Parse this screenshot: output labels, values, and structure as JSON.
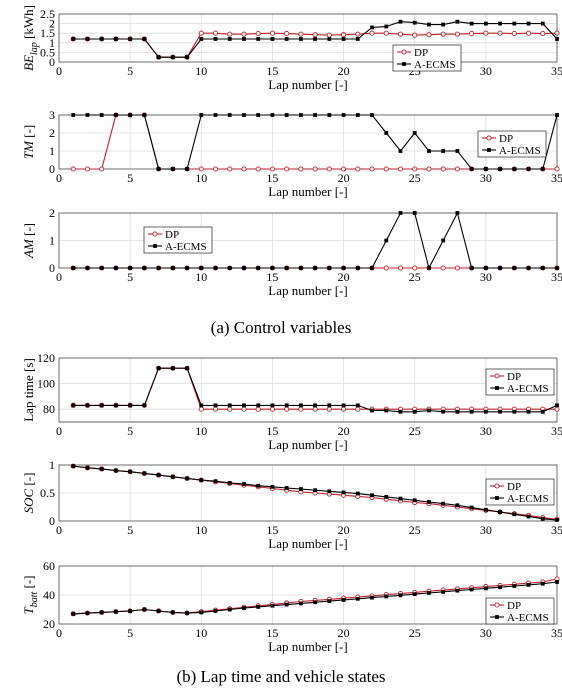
{
  "figure": {
    "caption_a": "(a) Control variables",
    "caption_b": "(b) Lap time and vehicle states"
  },
  "colors": {
    "dp": "#c0202a",
    "aecms": "#000000",
    "grid": "#dcdcdc"
  },
  "chart_data": [
    {
      "id": "be",
      "type": "line",
      "xlabel": "Lap number [-]",
      "ylabel_parts": [
        "BE",
        "lap",
        " [kWh]"
      ],
      "xlim": [
        0,
        35
      ],
      "ylim": [
        0,
        2.5
      ],
      "yticks": [
        "0",
        "0.5",
        "1",
        "1.5",
        "2",
        "2.5"
      ],
      "xticks": [
        "0",
        "5",
        "10",
        "15",
        "20",
        "25",
        "30",
        "35"
      ],
      "grid": true,
      "legend_position": "bottom-right",
      "x": [
        1,
        2,
        3,
        4,
        5,
        6,
        7,
        8,
        9,
        10,
        11,
        12,
        13,
        14,
        15,
        16,
        17,
        18,
        19,
        20,
        21,
        22,
        23,
        24,
        25,
        26,
        27,
        28,
        29,
        30,
        31,
        32,
        33,
        34,
        35
      ],
      "series": [
        {
          "name": "DP",
          "marker": "circle",
          "values": [
            1.2,
            1.2,
            1.2,
            1.2,
            1.2,
            1.2,
            0.25,
            0.25,
            0.25,
            1.5,
            1.5,
            1.45,
            1.45,
            1.48,
            1.5,
            1.48,
            1.45,
            1.42,
            1.4,
            1.42,
            1.45,
            1.5,
            1.5,
            1.45,
            1.4,
            1.42,
            1.45,
            1.45,
            1.48,
            1.5,
            1.5,
            1.48,
            1.5,
            1.48,
            1.5
          ]
        },
        {
          "name": "A-ECMS",
          "marker": "square",
          "values": [
            1.2,
            1.2,
            1.2,
            1.2,
            1.2,
            1.2,
            0.25,
            0.25,
            0.25,
            1.2,
            1.2,
            1.2,
            1.2,
            1.2,
            1.2,
            1.2,
            1.2,
            1.2,
            1.2,
            1.2,
            1.2,
            1.8,
            1.85,
            2.1,
            2.05,
            1.95,
            1.95,
            2.1,
            2.0,
            2.0,
            2.0,
            2.0,
            2.0,
            2.0,
            1.2
          ]
        }
      ]
    },
    {
      "id": "tm",
      "type": "line",
      "xlabel": "Lap number [-]",
      "ylabel_parts": [
        "TM",
        "",
        " [-]"
      ],
      "xlim": [
        0,
        35
      ],
      "ylim": [
        0,
        3
      ],
      "yticks": [
        "0",
        "1",
        "2",
        "3"
      ],
      "xticks": [
        "0",
        "5",
        "10",
        "15",
        "20",
        "25",
        "30",
        "35"
      ],
      "grid": true,
      "legend_position": "top-right",
      "x": [
        1,
        2,
        3,
        4,
        5,
        6,
        7,
        8,
        9,
        10,
        11,
        12,
        13,
        14,
        15,
        16,
        17,
        18,
        19,
        20,
        21,
        22,
        23,
        24,
        25,
        26,
        27,
        28,
        29,
        30,
        31,
        32,
        33,
        34,
        35
      ],
      "series": [
        {
          "name": "DP",
          "marker": "circle",
          "values": [
            0,
            0,
            0,
            3,
            3,
            3,
            0,
            0,
            0,
            0,
            0,
            0,
            0,
            0,
            0,
            0,
            0,
            0,
            0,
            0,
            0,
            0,
            0,
            0,
            0,
            0,
            0,
            0,
            0,
            0,
            0,
            0,
            0,
            0,
            0
          ]
        },
        {
          "name": "A-ECMS",
          "marker": "square",
          "values": [
            3,
            3,
            3,
            3,
            3,
            3,
            0,
            0,
            0,
            3,
            3,
            3,
            3,
            3,
            3,
            3,
            3,
            3,
            3,
            3,
            3,
            3,
            2,
            1,
            2,
            1,
            1,
            1,
            0,
            0,
            0,
            0,
            0,
            0,
            3
          ]
        }
      ]
    },
    {
      "id": "am",
      "type": "line",
      "xlabel": "Lap number [-]",
      "ylabel_parts": [
        "AM",
        "",
        " [-]"
      ],
      "xlim": [
        0,
        35
      ],
      "ylim": [
        0,
        2
      ],
      "yticks": [
        "0",
        "1",
        "2"
      ],
      "xticks": [
        "0",
        "5",
        "10",
        "15",
        "20",
        "25",
        "30",
        "35"
      ],
      "grid": true,
      "legend_position": "middle-left",
      "x": [
        1,
        2,
        3,
        4,
        5,
        6,
        7,
        8,
        9,
        10,
        11,
        12,
        13,
        14,
        15,
        16,
        17,
        18,
        19,
        20,
        21,
        22,
        23,
        24,
        25,
        26,
        27,
        28,
        29,
        30,
        31,
        32,
        33,
        34,
        35
      ],
      "series": [
        {
          "name": "DP",
          "marker": "circle",
          "values": [
            0,
            0,
            0,
            0,
            0,
            0,
            0,
            0,
            0,
            0,
            0,
            0,
            0,
            0,
            0,
            0,
            0,
            0,
            0,
            0,
            0,
            0,
            0,
            0,
            0,
            0,
            0,
            0,
            0,
            0,
            0,
            0,
            0,
            0,
            0
          ]
        },
        {
          "name": "A-ECMS",
          "marker": "square",
          "values": [
            0,
            0,
            0,
            0,
            0,
            0,
            0,
            0,
            0,
            0,
            0,
            0,
            0,
            0,
            0,
            0,
            0,
            0,
            0,
            0,
            0,
            0,
            1,
            2,
            2,
            0,
            1,
            2,
            0,
            0,
            0,
            0,
            0,
            0,
            0
          ]
        }
      ]
    },
    {
      "id": "laptime",
      "type": "line",
      "xlabel": "Lap number [-]",
      "ylabel_parts": [
        "Lap time [s]",
        "",
        ""
      ],
      "ylabel_italic": false,
      "xlim": [
        0,
        35
      ],
      "ylim": [
        70,
        120
      ],
      "yticks": [
        "80",
        "100",
        "120"
      ],
      "yticks_values": [
        80,
        100,
        120
      ],
      "xticks": [
        "0",
        "5",
        "10",
        "15",
        "20",
        "25",
        "30",
        "35"
      ],
      "grid": true,
      "legend_position": "top-right",
      "x": [
        1,
        2,
        3,
        4,
        5,
        6,
        7,
        8,
        9,
        10,
        11,
        12,
        13,
        14,
        15,
        16,
        17,
        18,
        19,
        20,
        21,
        22,
        23,
        24,
        25,
        26,
        27,
        28,
        29,
        30,
        31,
        32,
        33,
        34,
        35
      ],
      "series": [
        {
          "name": "DP",
          "marker": "circle",
          "values": [
            83,
            83,
            83,
            83,
            83,
            83,
            112,
            112,
            112,
            80,
            80,
            80,
            80,
            80,
            80,
            80,
            80,
            80,
            80,
            80,
            80,
            80,
            80,
            80,
            80,
            80,
            80,
            80,
            80,
            80,
            80,
            80,
            80,
            80,
            80
          ]
        },
        {
          "name": "A-ECMS",
          "marker": "square",
          "values": [
            83,
            83,
            83,
            83,
            83,
            83,
            112,
            112,
            112,
            83,
            83,
            83,
            83,
            83,
            83,
            83,
            83,
            83,
            83,
            83,
            83,
            79,
            79,
            78,
            78,
            79,
            78,
            78,
            78,
            78,
            78,
            78,
            78,
            78,
            83
          ]
        }
      ]
    },
    {
      "id": "soc",
      "type": "line",
      "xlabel": "Lap number [-]",
      "ylabel_parts": [
        "SOC",
        "",
        " [-]"
      ],
      "xlim": [
        0,
        35
      ],
      "ylim": [
        0,
        1
      ],
      "yticks": [
        "0",
        "0.5",
        "1"
      ],
      "xticks": [
        "0",
        "5",
        "10",
        "15",
        "20",
        "25",
        "30",
        "35"
      ],
      "grid": true,
      "legend_position": "middle-right",
      "x": [
        1,
        2,
        3,
        4,
        5,
        6,
        7,
        8,
        9,
        10,
        11,
        12,
        13,
        14,
        15,
        16,
        17,
        18,
        19,
        20,
        21,
        22,
        23,
        24,
        25,
        26,
        27,
        28,
        29,
        30,
        31,
        32,
        33,
        34,
        35
      ],
      "series": [
        {
          "name": "DP",
          "marker": "circle",
          "values": [
            0.98,
            0.95,
            0.93,
            0.9,
            0.88,
            0.85,
            0.82,
            0.79,
            0.76,
            0.73,
            0.7,
            0.67,
            0.64,
            0.61,
            0.58,
            0.55,
            0.52,
            0.5,
            0.48,
            0.46,
            0.44,
            0.42,
            0.39,
            0.36,
            0.33,
            0.31,
            0.28,
            0.25,
            0.22,
            0.19,
            0.16,
            0.13,
            0.1,
            0.06,
            0.03
          ]
        },
        {
          "name": "A-ECMS",
          "marker": "square",
          "values": [
            0.98,
            0.95,
            0.93,
            0.9,
            0.88,
            0.85,
            0.82,
            0.79,
            0.76,
            0.73,
            0.71,
            0.68,
            0.66,
            0.63,
            0.61,
            0.59,
            0.57,
            0.55,
            0.53,
            0.51,
            0.49,
            0.46,
            0.43,
            0.4,
            0.37,
            0.34,
            0.31,
            0.28,
            0.24,
            0.2,
            0.16,
            0.12,
            0.08,
            0.04,
            0.02
          ]
        }
      ]
    },
    {
      "id": "tbatt",
      "type": "line",
      "xlabel": "Lap number [-]",
      "ylabel_parts": [
        "T",
        "batt",
        " [-]"
      ],
      "xlim": [
        0,
        35
      ],
      "ylim": [
        20,
        60
      ],
      "yticks": [
        "20",
        "40",
        "60"
      ],
      "yticks_values": [
        20,
        40,
        60
      ],
      "xticks": [
        "0",
        "5",
        "10",
        "15",
        "20",
        "25",
        "30",
        "35"
      ],
      "grid": true,
      "legend_position": "bottom-right",
      "x": [
        1,
        2,
        3,
        4,
        5,
        6,
        7,
        8,
        9,
        10,
        11,
        12,
        13,
        14,
        15,
        16,
        17,
        18,
        19,
        20,
        21,
        22,
        23,
        24,
        25,
        26,
        27,
        28,
        29,
        30,
        31,
        32,
        33,
        34,
        35
      ],
      "series": [
        {
          "name": "DP",
          "marker": "circle",
          "values": [
            27,
            27.5,
            28,
            28.5,
            29,
            30,
            29,
            28,
            27.5,
            28.5,
            29.5,
            30.5,
            31.5,
            32.5,
            33.5,
            34.5,
            35.5,
            36.3,
            37,
            37.8,
            38.6,
            39.4,
            40.2,
            41,
            41.8,
            42.6,
            43.4,
            44.2,
            45,
            45.8,
            46.6,
            47.4,
            48.2,
            49,
            51
          ]
        },
        {
          "name": "A-ECMS",
          "marker": "square",
          "values": [
            27,
            27.5,
            28,
            28.5,
            29,
            30,
            29,
            28,
            27.5,
            28,
            29,
            30,
            31,
            31.8,
            32.6,
            33.4,
            34.2,
            35,
            35.8,
            36.6,
            37.4,
            38.2,
            39,
            39.8,
            40.6,
            41.4,
            42.2,
            43,
            43.8,
            44.6,
            45.4,
            46.2,
            47,
            47.8,
            49
          ]
        }
      ]
    }
  ]
}
